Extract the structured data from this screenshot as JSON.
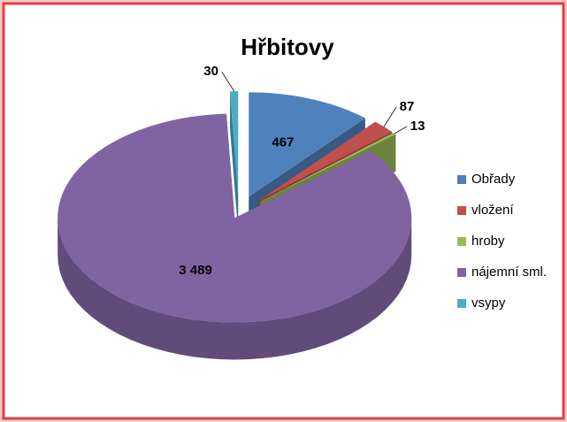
{
  "chart_data": {
    "type": "pie",
    "title": "Hřbitovy",
    "categories": [
      "Obřady",
      "vložení",
      "hroby",
      "nájemní sml.",
      "vsypy"
    ],
    "values": [
      467,
      87,
      13,
      3489,
      30
    ],
    "value_labels": [
      "467",
      "87",
      "13",
      "3 489",
      "30"
    ],
    "colors": [
      "#4f81bd",
      "#c0504d",
      "#9bbb59",
      "#8064a2",
      "#4bacc6"
    ],
    "legend": "right"
  }
}
